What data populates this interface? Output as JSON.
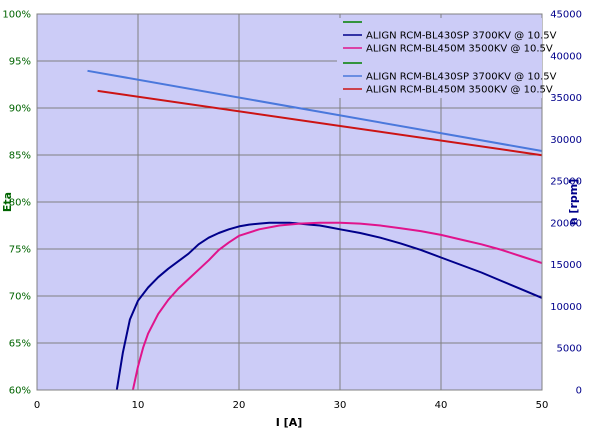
{
  "chart_data": {
    "type": "line",
    "xlabel": "I [A]",
    "ylabel_left": "Eta",
    "ylabel_right": "n [rpm]",
    "xlim": [
      0,
      50
    ],
    "ylim_left": [
      0.6,
      1.0
    ],
    "ylim_right": [
      0,
      45000
    ],
    "x_ticks": [
      "0",
      "10",
      "20",
      "30",
      "40",
      "50"
    ],
    "y_left_ticks": [
      "60%",
      "65%",
      "70%",
      "75%",
      "80%",
      "85%",
      "90%",
      "95%",
      "100%"
    ],
    "y_right_ticks": [
      "0",
      "5000",
      "10000",
      "15000",
      "20000",
      "25000",
      "30000",
      "35000",
      "40000",
      "45000"
    ],
    "grid": true,
    "legend_placement": "top-right",
    "legend_entries": [
      "",
      "ALIGN RCM-BL430SP  3700KV @ 10.5V",
      "ALIGN RCM-BL450M 3500KV @ 10.5V",
      "",
      "ALIGN RCM-BL430SP  3700KV @ 10.5V",
      "ALIGN RCM-BL450M 3500KV @ 10.5V"
    ],
    "series": [
      {
        "name": "ALIGN RCM-BL430SP  3700KV @ 10.5V",
        "axis": "left",
        "color": "#00008b",
        "x": [
          7.9,
          8.5,
          9.2,
          10,
          11,
          12,
          13,
          14,
          15,
          16,
          17,
          18,
          19,
          20,
          21,
          22,
          23,
          24,
          25,
          26,
          27,
          28,
          29,
          30,
          32,
          34,
          36,
          38,
          40,
          42,
          44,
          46,
          48,
          50
        ],
        "y": [
          0.6,
          0.64,
          0.675,
          0.695,
          0.709,
          0.72,
          0.729,
          0.737,
          0.745,
          0.755,
          0.762,
          0.767,
          0.771,
          0.774,
          0.776,
          0.777,
          0.778,
          0.778,
          0.778,
          0.777,
          0.776,
          0.775,
          0.773,
          0.771,
          0.767,
          0.762,
          0.756,
          0.749,
          0.741,
          0.733,
          0.725,
          0.716,
          0.707,
          0.698
        ]
      },
      {
        "name": "ALIGN RCM-BL450M 3500KV @ 10.5V",
        "axis": "left",
        "color": "#e0148c",
        "x": [
          9.5,
          10,
          10.5,
          11,
          12,
          13,
          14,
          15,
          16,
          17,
          18,
          19,
          20,
          22,
          24,
          26,
          28,
          30,
          32,
          34,
          36,
          38,
          40,
          42,
          44,
          46,
          48,
          50
        ],
        "y": [
          0.6,
          0.625,
          0.645,
          0.66,
          0.681,
          0.696,
          0.708,
          0.718,
          0.728,
          0.738,
          0.749,
          0.757,
          0.764,
          0.771,
          0.775,
          0.777,
          0.778,
          0.778,
          0.777,
          0.775,
          0.772,
          0.769,
          0.765,
          0.76,
          0.755,
          0.749,
          0.742,
          0.735
        ]
      },
      {
        "name": "ALIGN RCM-BL430SP  3700KV @ 10.5V",
        "axis": "right",
        "color": "#4a78dc",
        "x": [
          5,
          50
        ],
        "y": [
          38200,
          28600
        ]
      },
      {
        "name": "ALIGN RCM-BL450M 3500KV @ 10.5V",
        "axis": "right",
        "color": "#cc1414",
        "x": [
          6,
          50
        ],
        "y": [
          35800,
          28100
        ]
      }
    ]
  }
}
